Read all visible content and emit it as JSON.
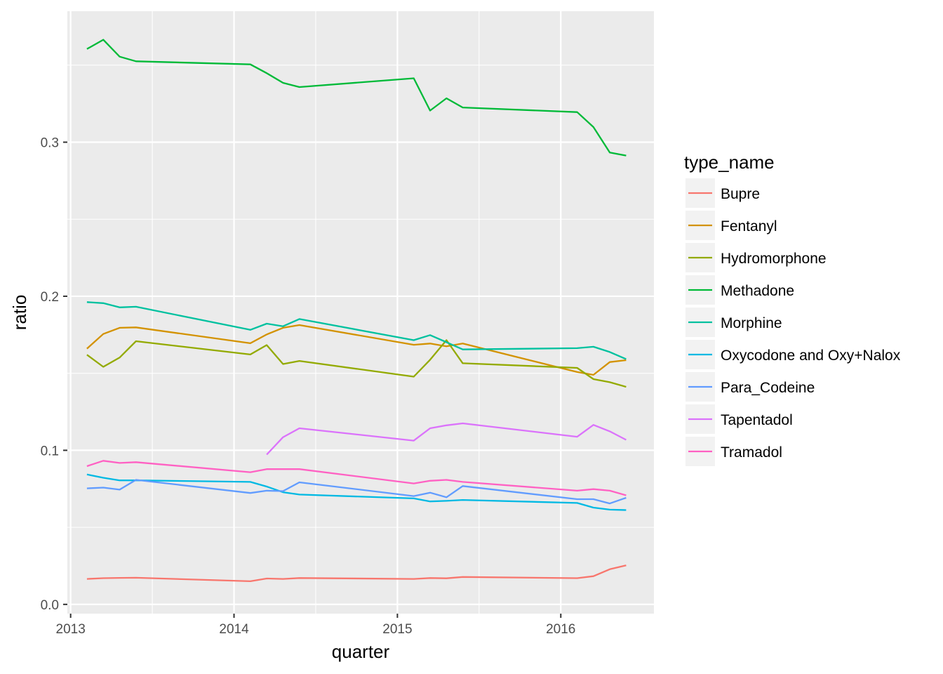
{
  "chart_data": {
    "type": "line",
    "xlabel": "quarter",
    "ylabel": "ratio",
    "x_ticks": [
      2013,
      2014,
      2015,
      2016
    ],
    "y_ticks": [
      0.0,
      0.1,
      0.2,
      0.3
    ],
    "y_tick_labels": [
      "0.0",
      "0.1",
      "0.2",
      "0.3"
    ],
    "xlim": [
      2012.98,
      2016.57
    ],
    "ylim": [
      -0.006,
      0.385
    ],
    "grid": true,
    "background": "#ebebeb",
    "legend": {
      "title": "type_name",
      "position": "right"
    },
    "x": [
      2013.1,
      2013.2,
      2013.3,
      2013.4,
      2014.1,
      2014.2,
      2014.3,
      2014.4,
      2015.1,
      2015.2,
      2015.3,
      2015.4,
      2016.1,
      2016.2,
      2016.3,
      2016.4
    ],
    "series": [
      {
        "name": "Bupre",
        "color": "#F8766D",
        "values": [
          0.0165,
          0.017,
          0.0172,
          0.0173,
          0.015,
          0.0168,
          0.0165,
          0.0171,
          0.0165,
          0.0171,
          0.0169,
          0.0178,
          0.017,
          0.0183,
          0.0228,
          0.0253
        ]
      },
      {
        "name": "Fentanyl",
        "color": "#D39200",
        "values": [
          0.166,
          0.1755,
          0.1795,
          0.1798,
          0.1695,
          0.1752,
          0.1795,
          0.1813,
          0.1685,
          0.1693,
          0.1675,
          0.1693,
          0.1508,
          0.149,
          0.1573,
          0.1585
        ]
      },
      {
        "name": "Hydromorphone",
        "color": "#93AA00",
        "values": [
          0.162,
          0.1542,
          0.1602,
          0.1708,
          0.1622,
          0.1683,
          0.156,
          0.158,
          0.1478,
          0.1588,
          0.1715,
          0.1565,
          0.1535,
          0.1462,
          0.1442,
          0.1412
        ]
      },
      {
        "name": "Methadone",
        "color": "#00BA38",
        "values": [
          0.3605,
          0.3665,
          0.3555,
          0.3525,
          0.3505,
          0.3448,
          0.3385,
          0.3358,
          0.3415,
          0.3205,
          0.3285,
          0.3225,
          0.3195,
          0.3098,
          0.2933,
          0.2913
        ]
      },
      {
        "name": "Morphine",
        "color": "#00C19F",
        "values": [
          0.1962,
          0.1955,
          0.1928,
          0.1932,
          0.1782,
          0.1822,
          0.1805,
          0.1852,
          0.1715,
          0.1748,
          0.1702,
          0.1655,
          0.1663,
          0.1672,
          0.1638,
          0.1592
        ]
      },
      {
        "name": "Oxycodone and Oxy+Nalox",
        "color": "#00B9E3",
        "values": [
          0.0843,
          0.0822,
          0.0805,
          0.0805,
          0.0795,
          0.0765,
          0.0728,
          0.0713,
          0.0688,
          0.0668,
          0.0672,
          0.0678,
          0.0658,
          0.0628,
          0.0615,
          0.0612
        ]
      },
      {
        "name": "Para_Codeine",
        "color": "#619CFF",
        "values": [
          0.0753,
          0.0758,
          0.0745,
          0.0808,
          0.0723,
          0.0738,
          0.0735,
          0.0792,
          0.0703,
          0.0725,
          0.0695,
          0.0768,
          0.0683,
          0.0683,
          0.0655,
          0.0692
        ]
      },
      {
        "name": "Tapentadol",
        "color": "#DB72FB",
        "values": [
          null,
          null,
          null,
          null,
          null,
          0.0972,
          0.1085,
          0.1143,
          0.1063,
          0.1143,
          0.1162,
          0.1175,
          0.1088,
          0.1165,
          0.1123,
          0.1068
        ]
      },
      {
        "name": "Tramadol",
        "color": "#FF61C3",
        "values": [
          0.0897,
          0.0932,
          0.0918,
          0.0923,
          0.0858,
          0.0878,
          0.0878,
          0.0878,
          0.0785,
          0.0802,
          0.0808,
          0.0795,
          0.0738,
          0.0748,
          0.0738,
          0.0708
        ]
      }
    ]
  }
}
